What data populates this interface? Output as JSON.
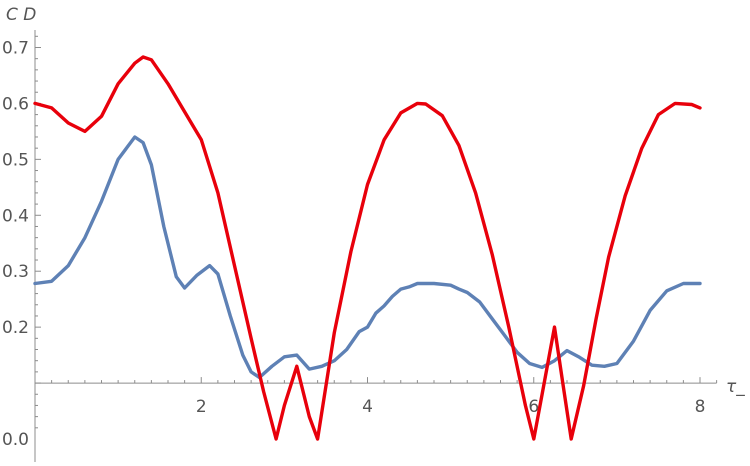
{
  "chart_data": {
    "type": "line",
    "title": "",
    "xlabel": "τ_",
    "ylabel": "C D",
    "xlim": [
      0,
      8.2
    ],
    "ylim": [
      0,
      0.72
    ],
    "x_axis_crosses_at": 0.1,
    "grid": false,
    "legend": "none",
    "xticks": [
      2,
      4,
      6,
      8
    ],
    "xtick_labels": [
      "2",
      "4",
      "6",
      "8"
    ],
    "yticks": [
      0.0,
      0.2,
      0.3,
      0.4,
      0.5,
      0.6,
      0.7
    ],
    "ytick_labels": [
      "0.0",
      "0.2",
      "0.3",
      "0.4",
      "0.5",
      "0.6",
      "0.7"
    ],
    "series": [
      {
        "color": "#e8000b",
        "x": [
          0,
          0.2,
          0.4,
          0.6,
          0.8,
          1.0,
          1.2,
          1.3,
          1.4,
          1.6,
          1.8,
          2.0,
          2.2,
          2.4,
          2.6,
          2.75,
          2.9,
          3.0,
          3.15,
          3.3,
          3.4,
          3.6,
          3.8,
          4.0,
          4.2,
          4.4,
          4.6,
          4.7,
          4.9,
          5.1,
          5.3,
          5.5,
          5.7,
          5.9,
          6.0,
          6.1,
          6.25,
          6.35,
          6.45,
          6.6,
          6.75,
          6.9,
          7.1,
          7.3,
          7.5,
          7.7,
          7.9,
          8.0
        ],
        "values": [
          0.6,
          0.592,
          0.565,
          0.55,
          0.577,
          0.635,
          0.672,
          0.683,
          0.678,
          0.635,
          0.585,
          0.535,
          0.44,
          0.31,
          0.18,
          0.085,
          0.0,
          0.06,
          0.13,
          0.04,
          0.0,
          0.19,
          0.335,
          0.455,
          0.535,
          0.583,
          0.6,
          0.599,
          0.578,
          0.525,
          0.44,
          0.33,
          0.2,
          0.06,
          0.0,
          0.08,
          0.2,
          0.1,
          0.0,
          0.095,
          0.215,
          0.325,
          0.435,
          0.52,
          0.58,
          0.6,
          0.598,
          0.592
        ]
      },
      {
        "color": "#5e81b5",
        "x": [
          0,
          0.2,
          0.4,
          0.6,
          0.8,
          1.0,
          1.2,
          1.3,
          1.4,
          1.55,
          1.7,
          1.8,
          1.95,
          2.1,
          2.2,
          2.35,
          2.5,
          2.6,
          2.7,
          2.85,
          3.0,
          3.15,
          3.3,
          3.45,
          3.6,
          3.75,
          3.9,
          4.0,
          4.1,
          4.2,
          4.3,
          4.4,
          4.5,
          4.6,
          4.8,
          5.0,
          5.1,
          5.2,
          5.35,
          5.5,
          5.65,
          5.8,
          5.95,
          6.1,
          6.25,
          6.4,
          6.55,
          6.7,
          6.85,
          7.0,
          7.2,
          7.4,
          7.6,
          7.8,
          8.0
        ],
        "values": [
          0.278,
          0.282,
          0.31,
          0.36,
          0.425,
          0.5,
          0.54,
          0.53,
          0.49,
          0.38,
          0.29,
          0.27,
          0.293,
          0.31,
          0.295,
          0.22,
          0.15,
          0.12,
          0.11,
          0.13,
          0.147,
          0.15,
          0.125,
          0.13,
          0.14,
          0.16,
          0.192,
          0.2,
          0.225,
          0.238,
          0.255,
          0.268,
          0.272,
          0.278,
          0.278,
          0.275,
          0.268,
          0.262,
          0.245,
          0.215,
          0.185,
          0.155,
          0.135,
          0.128,
          0.14,
          0.158,
          0.146,
          0.132,
          0.13,
          0.135,
          0.175,
          0.23,
          0.265,
          0.278,
          0.278
        ]
      }
    ]
  }
}
